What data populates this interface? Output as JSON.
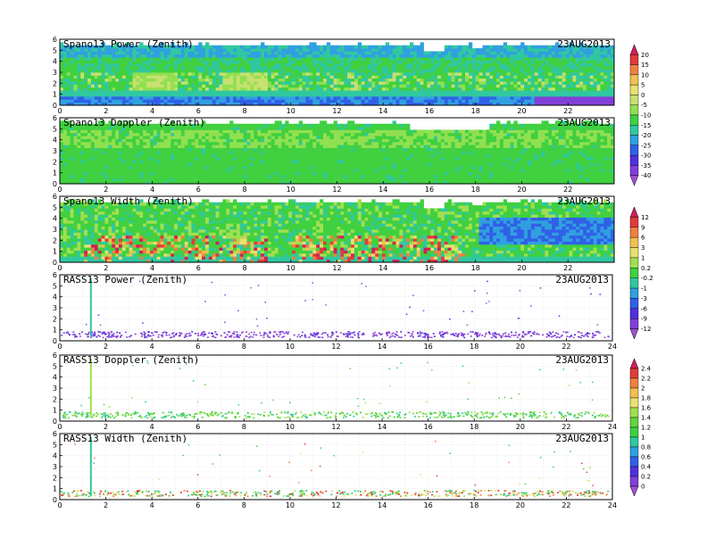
{
  "chart_data": [
    {
      "type": "heatmap",
      "title": "Spano13 Power (Zenith)",
      "date": "23AUG2013",
      "xlim": [
        0,
        24
      ],
      "ylim": [
        0,
        6
      ],
      "xticks": [
        "0",
        "2",
        "4",
        "6",
        "8",
        "10",
        "12",
        "14",
        "16",
        "18",
        "20",
        "22"
      ],
      "yticks": [
        "0",
        "1",
        "2",
        "3",
        "4",
        "5",
        "6"
      ],
      "colorbar": "power",
      "field": "spano_power",
      "gap_after_hour": 24
    },
    {
      "type": "heatmap",
      "title": "Spano13 Doppler (Zenith)",
      "date": "23AUG2013",
      "xlim": [
        0,
        24
      ],
      "ylim": [
        0,
        6
      ],
      "xticks": [
        "0",
        "2",
        "4",
        "6",
        "8",
        "10",
        "12",
        "14",
        "16",
        "18",
        "20",
        "22"
      ],
      "yticks": [
        "0",
        "1",
        "2",
        "3",
        "4",
        "5",
        "6"
      ],
      "colorbar": "power",
      "field": "spano_doppler",
      "gap_after_hour": 24
    },
    {
      "type": "heatmap",
      "title": "Spano13 Width (Zenith)",
      "date": "23AUG2013",
      "xlim": [
        0,
        24
      ],
      "ylim": [
        0,
        6
      ],
      "xticks": [
        "0",
        "2",
        "4",
        "6",
        "8",
        "10",
        "12",
        "14",
        "16",
        "18",
        "20",
        "22"
      ],
      "yticks": [
        "0",
        "1",
        "2",
        "3",
        "4",
        "5",
        "6"
      ],
      "colorbar": "width",
      "field": "spano_width",
      "gap_after_hour": 24
    },
    {
      "type": "scatter",
      "title": "RASS13 Power (Zenith)",
      "date": "23AUG2013",
      "xlim": [
        0,
        24
      ],
      "ylim": [
        0,
        6
      ],
      "xticks": [
        "0",
        "2",
        "4",
        "6",
        "8",
        "10",
        "12",
        "14",
        "16",
        "18",
        "20",
        "22",
        "24"
      ],
      "yticks": [
        "0",
        "1",
        "2",
        "3",
        "4",
        "5",
        "6"
      ],
      "colorbar": "width",
      "field": "rass_power",
      "grid": true,
      "spike_hour": 1.35
    },
    {
      "type": "scatter",
      "title": "RASS13 Doppler (Zenith)",
      "date": "23AUG2013",
      "xlim": [
        0,
        24
      ],
      "ylim": [
        0,
        6
      ],
      "xticks": [
        "0",
        "2",
        "4",
        "6",
        "8",
        "10",
        "12",
        "14",
        "16",
        "18",
        "20",
        "22",
        "24"
      ],
      "yticks": [
        "0",
        "1",
        "2",
        "3",
        "4",
        "5",
        "6"
      ],
      "colorbar": "rass",
      "field": "rass_doppler",
      "grid": true,
      "spike_hour": 1.35
    },
    {
      "type": "scatter",
      "title": "RASS13 Width (Zenith)",
      "date": "23AUG2013",
      "xlim": [
        0,
        24
      ],
      "ylim": [
        0,
        6
      ],
      "xticks": [
        "0",
        "2",
        "4",
        "6",
        "8",
        "10",
        "12",
        "14",
        "16",
        "18",
        "20",
        "22",
        "24"
      ],
      "yticks": [
        "0",
        "1",
        "2",
        "3",
        "4",
        "5",
        "6"
      ],
      "colorbar": "rass",
      "field": "rass_width",
      "grid": true,
      "spike_hour": 1.35
    }
  ],
  "colorbars": {
    "power": {
      "labels": [
        "20",
        "15",
        "10",
        "5",
        "0",
        "-5",
        "-10",
        "-15",
        "-20",
        "-25",
        "-30",
        "-35",
        "-40"
      ],
      "colors": [
        "#d0205a",
        "#e03c3c",
        "#f08040",
        "#f0c050",
        "#e8e070",
        "#c8e070",
        "#90e050",
        "#40d040",
        "#30c8a0",
        "#30a0e0",
        "#3060e8",
        "#5030e0",
        "#8040d8",
        "#a050d0"
      ]
    },
    "width": {
      "labels": [
        "12",
        "9",
        "6",
        "3",
        "1",
        "0.2",
        "-0.2",
        "-1",
        "-3",
        "-6",
        "-9",
        "-12"
      ],
      "colors": [
        "#d0205a",
        "#e03c3c",
        "#f08040",
        "#f0c050",
        "#e8e070",
        "#a0e050",
        "#40d040",
        "#30c8a0",
        "#30a0e0",
        "#3060e8",
        "#5030e0",
        "#8040d8",
        "#a050d0"
      ]
    },
    "rass": {
      "labels": [
        "2.4",
        "2.2",
        "2",
        "1.8",
        "1.6",
        "1.4",
        "1.2",
        "1",
        "0.8",
        "0.6",
        "0.4",
        "0.2",
        "0"
      ],
      "colors": [
        "#d0205a",
        "#e03c3c",
        "#f08040",
        "#f0c050",
        "#e8e070",
        "#a0e050",
        "#60d840",
        "#40d040",
        "#30c8a0",
        "#30a0e0",
        "#3060e8",
        "#5030e0",
        "#8040d8",
        "#a050d0"
      ]
    }
  }
}
